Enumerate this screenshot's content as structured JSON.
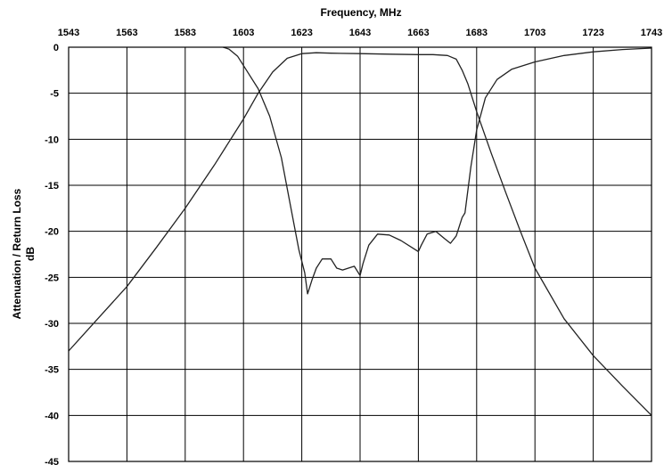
{
  "chart_data": {
    "type": "line",
    "xlabel": "Frequency, MHz",
    "ylabel_line1": "Attenuation / Return Loss",
    "ylabel_line2": "dB",
    "xlim": [
      1543,
      1743
    ],
    "ylim": [
      -45,
      0
    ],
    "x_ticks": [
      1543,
      1563,
      1583,
      1603,
      1623,
      1643,
      1663,
      1683,
      1703,
      1723,
      1743
    ],
    "y_ticks": [
      0,
      -5,
      -10,
      -15,
      -20,
      -25,
      -30,
      -35,
      -40,
      -45
    ],
    "x_axis_position": "top",
    "grid": true,
    "series": [
      {
        "x": [
          1543,
          1553,
          1563,
          1573,
          1583,
          1593,
          1603,
          1608,
          1613,
          1618,
          1623,
          1628,
          1633,
          1643,
          1653,
          1663,
          1668,
          1673,
          1676,
          1678,
          1680,
          1683,
          1688,
          1693,
          1698,
          1703,
          1713,
          1723,
          1733,
          1743
        ],
        "y": [
          -33,
          -29.5,
          -26,
          -21.8,
          -17.5,
          -12.8,
          -7.8,
          -5,
          -2.7,
          -1.2,
          -0.7,
          -0.6,
          -0.65,
          -0.7,
          -0.75,
          -0.8,
          -0.8,
          -0.9,
          -1.3,
          -2.5,
          -4,
          -7,
          -11.5,
          -15.8,
          -20,
          -24,
          -29.5,
          -33.5,
          -36.8,
          -40
        ]
      },
      {
        "x": [
          1596,
          1598,
          1601,
          1604,
          1608,
          1612,
          1616,
          1619,
          1622,
          1624,
          1625,
          1626.5,
          1628,
          1630,
          1633,
          1635,
          1637,
          1639,
          1641,
          1643,
          1644,
          1646,
          1649,
          1653,
          1657,
          1661,
          1663,
          1664,
          1666,
          1669,
          1672,
          1674,
          1676,
          1678,
          1679,
          1681,
          1683,
          1686,
          1690,
          1695,
          1703,
          1713,
          1723,
          1733,
          1743
        ],
        "y": [
          0,
          -0.2,
          -1,
          -2.5,
          -4.5,
          -7.5,
          -12,
          -17,
          -22,
          -24.5,
          -26.8,
          -25.3,
          -24,
          -23,
          -23,
          -24,
          -24.2,
          -24,
          -23.8,
          -24.8,
          -23.5,
          -21.5,
          -20.3,
          -20.4,
          -21,
          -21.8,
          -22.2,
          -21.5,
          -20.3,
          -20,
          -20.8,
          -21.3,
          -20.5,
          -18.5,
          -18,
          -13,
          -9,
          -5.5,
          -3.5,
          -2.4,
          -1.6,
          -0.9,
          -0.5,
          -0.25,
          -0.1
        ]
      }
    ]
  }
}
